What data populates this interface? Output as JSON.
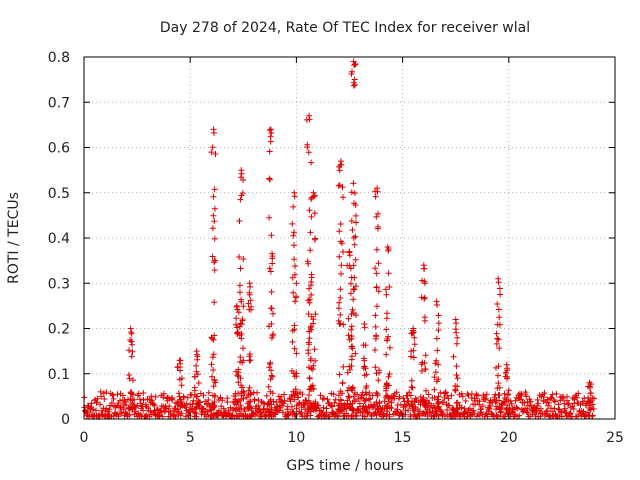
{
  "chart_data": {
    "type": "scatter",
    "title": "Day 278 of 2024, Rate Of TEC Index for receiver wlal",
    "xlabel": "GPS time / hours",
    "ylabel": "ROTI / TECUs",
    "xlim": [
      0,
      25
    ],
    "ylim": [
      0,
      0.8
    ],
    "xticks": [
      0,
      5,
      10,
      15,
      20,
      25
    ],
    "yticks": [
      0,
      0.1,
      0.2,
      0.3,
      0.4,
      0.5,
      0.6,
      0.7,
      0.8
    ],
    "grid": true,
    "marker": "+",
    "color": "#e00000",
    "baseline": {
      "x_start": 0,
      "x_end": 24,
      "level_min": 0.005,
      "level_max": 0.06
    },
    "activity_bursts": [
      {
        "x": 2.2,
        "max": 0.2
      },
      {
        "x": 4.5,
        "max": 0.13
      },
      {
        "x": 5.3,
        "max": 0.15
      },
      {
        "x": 6.1,
        "max": 0.64
      },
      {
        "x": 7.2,
        "max": 0.25
      },
      {
        "x": 7.4,
        "max": 0.55
      },
      {
        "x": 7.8,
        "max": 0.3
      },
      {
        "x": 8.8,
        "max": 0.64
      },
      {
        "x": 9.9,
        "max": 0.5
      },
      {
        "x": 10.6,
        "max": 0.67
      },
      {
        "x": 10.8,
        "max": 0.5
      },
      {
        "x": 12.1,
        "max": 0.57
      },
      {
        "x": 12.5,
        "max": 0.37
      },
      {
        "x": 12.7,
        "max": 0.79
      },
      {
        "x": 13.2,
        "max": 0.21
      },
      {
        "x": 13.8,
        "max": 0.51
      },
      {
        "x": 14.3,
        "max": 0.38
      },
      {
        "x": 15.5,
        "max": 0.2
      },
      {
        "x": 16.0,
        "max": 0.34
      },
      {
        "x": 16.6,
        "max": 0.26
      },
      {
        "x": 17.5,
        "max": 0.22
      },
      {
        "x": 19.5,
        "max": 0.31
      },
      {
        "x": 19.9,
        "max": 0.12
      },
      {
        "x": 23.8,
        "max": 0.08
      }
    ]
  }
}
